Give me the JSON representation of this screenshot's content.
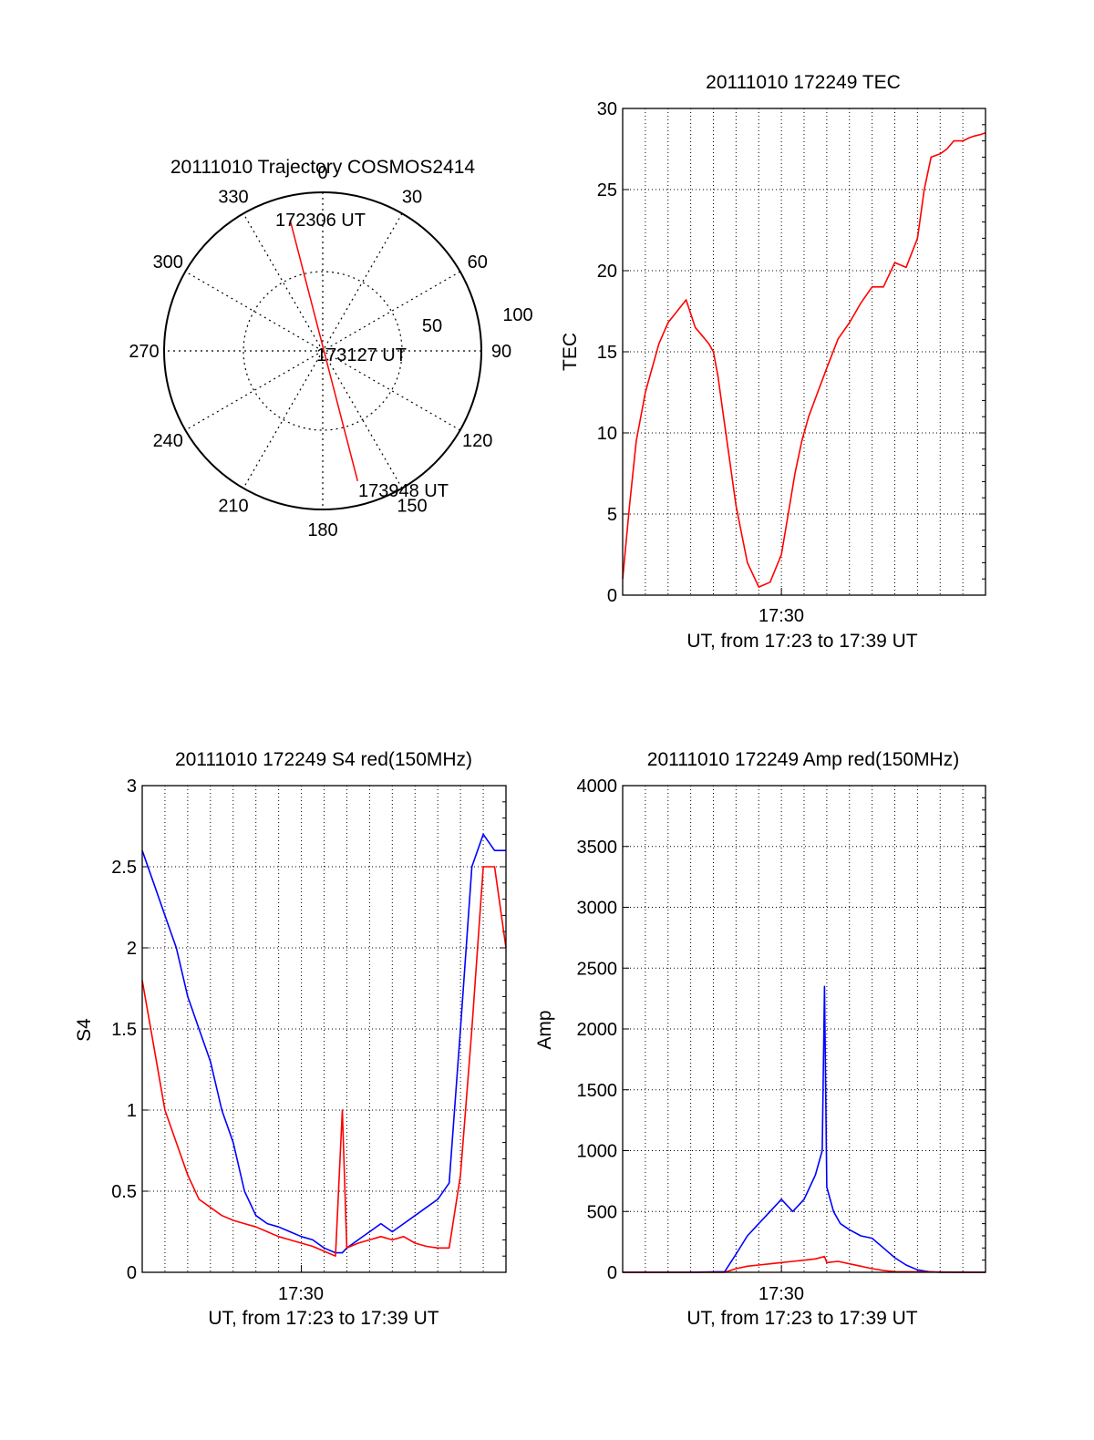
{
  "chart_data": [
    {
      "type": "polar",
      "title": "20111010 Trajectory COSMOS2414",
      "angle_labels": [
        "0",
        "30",
        "60",
        "90",
        "120",
        "150",
        "180",
        "210",
        "240",
        "270",
        "300",
        "330"
      ],
      "radius_labels": [
        "50",
        "100"
      ],
      "grid": true,
      "colors": {
        "trajectory": "#ff0000"
      },
      "trajectory": [
        {
          "label": "172306 UT",
          "azimuth": 346,
          "zenith_angle": 85
        },
        {
          "label": "173127 UT",
          "azimuth": 0,
          "zenith_angle": 0
        },
        {
          "label": "173948 UT",
          "azimuth": 165,
          "zenith_angle": 85
        }
      ]
    },
    {
      "type": "line",
      "title": "20111010 172249 TEC",
      "xlabel": "UT, from 17:23 to 17:39 UT",
      "ylabel": "TEC",
      "x_tick_label": "17:30",
      "ylim": [
        0,
        30
      ],
      "yticks": [
        "0",
        "5",
        "10",
        "15",
        "20",
        "25",
        "30"
      ],
      "grid": true,
      "series": [
        {
          "color": "#ff0000",
          "x": [
            0,
            0.3,
            0.6,
            1.0,
            1.3,
            1.6,
            2.0,
            2.4,
            2.8,
            3.2,
            3.5,
            3.8,
            4.0,
            4.2,
            4.5,
            5.0,
            5.5,
            6.0,
            6.5,
            7.0,
            7.3,
            7.6,
            7.9,
            8.2,
            8.6,
            9.0,
            9.5,
            10.0,
            10.5,
            11.0,
            11.5,
            12.0,
            12.5,
            13.0,
            13.3,
            13.6,
            14.0,
            14.3,
            14.6,
            15.0,
            15.3,
            15.5,
            15.8,
            16.0
          ],
          "values": [
            1.0,
            5.5,
            9.5,
            12.5,
            14.0,
            15.5,
            16.8,
            17.5,
            18.2,
            16.5,
            16.0,
            15.5,
            15.0,
            13.5,
            10.5,
            5.5,
            2.0,
            0.5,
            0.8,
            2.5,
            5.0,
            7.5,
            9.5,
            11.0,
            12.5,
            14.0,
            15.8,
            16.8,
            18.0,
            19.0,
            19.0,
            20.5,
            20.2,
            22.0,
            25.0,
            27.0,
            27.2,
            27.5,
            28.0,
            28.0,
            28.2,
            28.3,
            28.4,
            28.5
          ]
        }
      ]
    },
    {
      "type": "line",
      "title": "20111010 172249 S4 red(150MHz)",
      "xlabel": "UT, from 17:23 to 17:39 UT",
      "ylabel": "S4",
      "x_tick_label": "17:30",
      "ylim": [
        0,
        3
      ],
      "yticks": [
        "0",
        "0.5",
        "1",
        "1.5",
        "2",
        "2.5",
        "3"
      ],
      "grid": true,
      "series": [
        {
          "color": "#0000ff",
          "x": [
            0,
            0.5,
            1.0,
            1.5,
            2.0,
            2.5,
            3.0,
            3.5,
            4.0,
            4.5,
            5.0,
            5.5,
            6.0,
            6.5,
            7.0,
            7.5,
            8.0,
            8.5,
            8.8,
            9.0,
            9.5,
            10.0,
            10.5,
            11.0,
            11.5,
            12.0,
            12.5,
            13.0,
            13.5,
            14.0,
            14.5,
            15.0,
            15.5,
            16.0
          ],
          "values": [
            2.6,
            2.4,
            2.2,
            2.0,
            1.7,
            1.5,
            1.3,
            1.0,
            0.8,
            0.5,
            0.35,
            0.3,
            0.28,
            0.25,
            0.22,
            0.2,
            0.15,
            0.12,
            0.12,
            0.15,
            0.2,
            0.25,
            0.3,
            0.25,
            0.3,
            0.35,
            0.4,
            0.45,
            0.55,
            1.5,
            2.5,
            2.7,
            2.6,
            2.6
          ]
        },
        {
          "color": "#ff0000",
          "x": [
            0,
            0.5,
            1.0,
            1.5,
            2.0,
            2.5,
            3.0,
            3.5,
            4.0,
            4.5,
            5.0,
            5.5,
            6.0,
            6.5,
            7.0,
            7.5,
            8.0,
            8.5,
            8.8,
            9.0,
            9.5,
            10.0,
            10.5,
            11.0,
            11.5,
            12.0,
            12.5,
            13.0,
            13.5,
            14.0,
            14.5,
            15.0,
            15.5,
            16.0
          ],
          "values": [
            1.8,
            1.4,
            1.0,
            0.8,
            0.6,
            0.45,
            0.4,
            0.35,
            0.32,
            0.3,
            0.28,
            0.25,
            0.22,
            0.2,
            0.18,
            0.16,
            0.13,
            0.1,
            1.0,
            0.15,
            0.18,
            0.2,
            0.22,
            0.2,
            0.22,
            0.18,
            0.16,
            0.15,
            0.15,
            0.6,
            1.5,
            2.5,
            2.5,
            2.0
          ]
        }
      ]
    },
    {
      "type": "line",
      "title": "20111010 172249 Amp red(150MHz)",
      "xlabel": "UT, from 17:23 to 17:39 UT",
      "ylabel": "Amp",
      "x_tick_label": "17:30",
      "ylim": [
        0,
        4000
      ],
      "yticks": [
        "0",
        "500",
        "1000",
        "1500",
        "2000",
        "2500",
        "3000",
        "3500",
        "4000"
      ],
      "grid": true,
      "series": [
        {
          "color": "#0000ff",
          "x": [
            0,
            3,
            4.5,
            5.0,
            5.5,
            6.0,
            6.5,
            7.0,
            7.5,
            8.0,
            8.5,
            8.8,
            8.9,
            9.0,
            9.3,
            9.6,
            10.0,
            10.5,
            11.0,
            11.5,
            12.0,
            12.5,
            13.0,
            13.5,
            14.0,
            16.0
          ],
          "values": [
            0,
            0,
            5,
            150,
            300,
            400,
            500,
            600,
            500,
            600,
            800,
            1000,
            2350,
            700,
            500,
            400,
            350,
            300,
            280,
            200,
            120,
            60,
            20,
            5,
            0,
            0
          ]
        },
        {
          "color": "#ff0000",
          "x": [
            0,
            4.5,
            5.0,
            5.5,
            6.0,
            6.5,
            7.0,
            7.5,
            8.0,
            8.5,
            8.9,
            9.0,
            9.5,
            10.0,
            10.5,
            11.0,
            11.5,
            12.0,
            16.0
          ],
          "values": [
            0,
            0,
            30,
            50,
            60,
            70,
            80,
            90,
            100,
            110,
            130,
            80,
            90,
            70,
            50,
            30,
            15,
            5,
            0
          ]
        }
      ]
    }
  ]
}
